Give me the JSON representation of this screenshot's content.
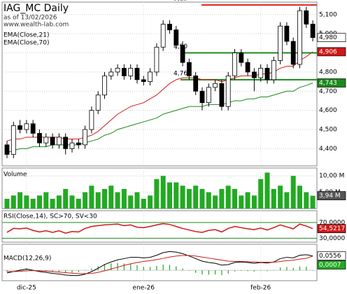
{
  "chart_data": [
    {
      "type": "candlestick",
      "title": "IAG_MC Daily",
      "subtitle": [
        "as of 13/02/2026",
        "www.wealth-lab.com"
      ],
      "categories": [
        null,
        null,
        null,
        "dic-25",
        null,
        null,
        null,
        null,
        null,
        null,
        null,
        null,
        null,
        null,
        null,
        null,
        null,
        null,
        null,
        null,
        null,
        "ene-26",
        null,
        null,
        null,
        null,
        null,
        null,
        null,
        null,
        null,
        null,
        null,
        null,
        null,
        null,
        null,
        null,
        null,
        "feb-26",
        null,
        null,
        null,
        null,
        null,
        null,
        null,
        null
      ],
      "open": [
        4.42,
        4.37,
        4.52,
        4.5,
        4.53,
        4.48,
        4.43,
        4.46,
        4.42,
        4.46,
        4.4,
        4.43,
        4.42,
        4.5,
        4.6,
        4.68,
        4.78,
        4.8,
        4.82,
        4.78,
        4.82,
        4.76,
        4.75,
        4.8,
        4.93,
        5.05,
        5.02,
        4.94,
        4.85,
        4.78,
        4.7,
        4.64,
        4.72,
        4.74,
        4.62,
        4.78,
        4.9,
        4.85,
        4.8,
        4.77,
        4.82,
        4.76,
        4.86,
        5.04,
        4.96,
        4.84,
        5.12,
        5.05
      ],
      "high": [
        4.44,
        4.54,
        4.55,
        4.55,
        4.55,
        4.5,
        4.48,
        4.48,
        4.48,
        4.48,
        4.45,
        4.45,
        4.52,
        4.62,
        4.7,
        4.8,
        4.82,
        4.84,
        4.84,
        4.84,
        4.84,
        4.78,
        4.82,
        4.95,
        5.07,
        5.07,
        5.04,
        4.96,
        4.87,
        4.8,
        4.72,
        4.74,
        4.76,
        4.76,
        4.8,
        4.92,
        4.92,
        4.87,
        4.82,
        4.84,
        4.84,
        4.88,
        5.06,
        5.06,
        4.98,
        5.14,
        5.14,
        5.07
      ],
      "low": [
        4.35,
        4.35,
        4.48,
        4.48,
        4.46,
        4.41,
        4.41,
        4.4,
        4.4,
        4.37,
        4.38,
        4.4,
        4.4,
        4.48,
        4.58,
        4.66,
        4.76,
        4.78,
        4.76,
        4.76,
        4.74,
        4.73,
        4.73,
        4.78,
        4.91,
        5.0,
        4.92,
        4.83,
        4.76,
        4.68,
        4.6,
        4.62,
        4.7,
        4.6,
        4.6,
        4.76,
        4.83,
        4.78,
        4.7,
        4.75,
        4.74,
        4.74,
        4.84,
        4.94,
        4.82,
        4.82,
        5.03,
        4.96
      ],
      "close": [
        4.37,
        4.52,
        4.5,
        4.53,
        4.48,
        4.43,
        4.46,
        4.42,
        4.46,
        4.4,
        4.43,
        4.42,
        4.5,
        4.6,
        4.68,
        4.78,
        4.8,
        4.82,
        4.78,
        4.82,
        4.76,
        4.75,
        4.8,
        4.93,
        5.05,
        5.02,
        4.94,
        4.85,
        4.78,
        4.7,
        4.64,
        4.72,
        4.74,
        4.62,
        4.78,
        4.9,
        4.85,
        4.8,
        4.77,
        4.82,
        4.76,
        4.86,
        5.04,
        4.96,
        4.84,
        5.12,
        5.05,
        4.98
      ],
      "value_label": "4,980",
      "up_color": "#ffffff",
      "down_color": "#000000",
      "series": [
        {
          "name": "EMA(Close,21)",
          "color": "#d01818",
          "value_label": "4,906",
          "values": [
            4.44,
            4.45,
            4.45,
            4.46,
            4.46,
            4.46,
            4.46,
            4.46,
            4.46,
            4.45,
            4.45,
            4.45,
            4.46,
            4.47,
            4.49,
            4.52,
            4.55,
            4.58,
            4.6,
            4.62,
            4.63,
            4.64,
            4.66,
            4.68,
            4.71,
            4.74,
            4.76,
            4.77,
            4.77,
            4.77,
            4.76,
            4.76,
            4.76,
            4.75,
            4.76,
            4.77,
            4.78,
            4.78,
            4.78,
            4.79,
            4.79,
            4.8,
            4.82,
            4.83,
            4.83,
            4.86,
            4.88,
            4.906
          ]
        },
        {
          "name": "EMA(Close,70)",
          "color": "#1a8a1a",
          "value_label": "4,743",
          "values": [
            4.38,
            4.39,
            4.4,
            4.4,
            4.41,
            4.41,
            4.41,
            4.42,
            4.42,
            4.42,
            4.42,
            4.42,
            4.43,
            4.44,
            4.45,
            4.47,
            4.48,
            4.5,
            4.51,
            4.52,
            4.53,
            4.54,
            4.55,
            4.56,
            4.58,
            4.59,
            4.6,
            4.61,
            4.62,
            4.62,
            4.62,
            4.63,
            4.63,
            4.63,
            4.64,
            4.65,
            4.65,
            4.66,
            4.66,
            4.67,
            4.67,
            4.68,
            4.69,
            4.7,
            4.7,
            4.72,
            4.73,
            4.743
          ]
        }
      ],
      "levels": [
        {
          "value": 5.15,
          "label": "5,15",
          "color": "#e02020"
        },
        {
          "value": 4.9,
          "label": "4,90",
          "color": "#1a8a1a"
        },
        {
          "value": 4.76,
          "label": "4,76",
          "color": "#1a8a1a"
        }
      ],
      "ylim": [
        4.31,
        5.165
      ],
      "yticks": [
        {
          "value": 4.4,
          "label": "4,400"
        },
        {
          "value": 4.5,
          "label": "4,500"
        },
        {
          "value": 4.6,
          "label": "4,600"
        },
        {
          "value": 4.7,
          "label": "4,700"
        },
        {
          "value": 4.8,
          "label": "4,800"
        },
        {
          "value": 4.9,
          "label": "4,900"
        },
        {
          "value": 5.0,
          "label": "5,000"
        },
        {
          "value": 5.1,
          "label": "5,100"
        }
      ],
      "grid": true
    },
    {
      "type": "bar",
      "title": "Volume",
      "color": "#22aa22",
      "value_label": "3,94 M",
      "values": [
        3,
        4,
        5,
        4,
        3,
        4,
        5,
        3,
        4,
        6,
        4,
        3,
        5,
        7,
        5,
        6,
        7,
        5,
        6,
        4,
        5,
        3,
        4,
        9,
        10,
        8,
        8,
        7,
        6,
        7,
        6,
        5,
        4,
        6,
        7,
        6,
        4,
        5,
        4,
        9,
        11,
        6,
        7,
        5,
        10,
        7,
        5,
        3.94
      ],
      "ylim": [
        0,
        12.4
      ],
      "yticks": [
        {
          "value": 5,
          "label": "5,00 M"
        },
        {
          "value": 10,
          "label": "10,00 M"
        }
      ]
    },
    {
      "type": "line",
      "title": "RSI(Close,14), SC>70, SV<30",
      "color": "#d01818",
      "value_label": "54,5217",
      "grid_color": "#1a8a1a",
      "values": [
        45,
        55,
        54,
        56,
        50,
        46,
        49,
        45,
        49,
        43,
        47,
        46,
        55,
        60,
        62,
        64,
        65,
        66,
        62,
        64,
        58,
        57,
        60,
        64,
        67,
        65,
        60,
        55,
        51,
        47,
        45,
        50,
        52,
        46,
        55,
        60,
        57,
        54,
        52,
        56,
        51,
        57,
        64,
        59,
        54,
        66,
        61,
        54.5217
      ],
      "ylim": [
        20,
        100
      ],
      "yticks": [
        {
          "value": 30,
          "label": "30,0000"
        },
        {
          "value": 70,
          "label": "70,0000"
        }
      ]
    },
    {
      "type": "macd",
      "title": "MACD(12,26,9)",
      "ylim": [
        -0.04,
        0.1
      ],
      "series": [
        {
          "color": "#000000",
          "value_label": "0,0556",
          "values": [
            -0.01,
            -0.005,
            0,
            0.005,
            0,
            -0.005,
            -0.008,
            -0.012,
            -0.014,
            -0.018,
            -0.02,
            -0.02,
            -0.015,
            -0.005,
            0.008,
            0.022,
            0.032,
            0.04,
            0.045,
            0.05,
            0.05,
            0.048,
            0.05,
            0.058,
            0.068,
            0.072,
            0.07,
            0.064,
            0.055,
            0.045,
            0.035,
            0.03,
            0.027,
            0.02,
            0.022,
            0.03,
            0.032,
            0.03,
            0.027,
            0.03,
            0.028,
            0.032,
            0.045,
            0.05,
            0.048,
            0.058,
            0.06,
            0.0556
          ]
        },
        {
          "color": "#d01818",
          "values": [
            -0.005,
            -0.005,
            -0.004,
            -0.002,
            -0.001,
            -0.002,
            -0.003,
            -0.005,
            -0.007,
            -0.009,
            -0.011,
            -0.013,
            -0.013,
            -0.012,
            -0.008,
            -0.002,
            0.005,
            0.012,
            0.019,
            0.025,
            0.03,
            0.034,
            0.037,
            0.041,
            0.046,
            0.051,
            0.055,
            0.057,
            0.057,
            0.055,
            0.051,
            0.047,
            0.043,
            0.039,
            0.035,
            0.034,
            0.034,
            0.033,
            0.032,
            0.031,
            0.031,
            0.031,
            0.034,
            0.037,
            0.039,
            0.043,
            0.046,
            0.0549
          ]
        }
      ],
      "histogram": {
        "color": "#22aa22",
        "value_label": "0,0007",
        "values": [
          -0.005,
          0,
          0.004,
          0.007,
          0.001,
          -0.003,
          -0.005,
          -0.007,
          -0.007,
          -0.009,
          -0.009,
          -0.007,
          -0.002,
          0.007,
          0.016,
          0.024,
          0.027,
          0.028,
          0.026,
          0.025,
          0.02,
          0.014,
          0.013,
          0.017,
          0.022,
          0.021,
          0.015,
          0.007,
          -0.002,
          -0.01,
          -0.016,
          -0.017,
          -0.016,
          -0.019,
          -0.013,
          -0.004,
          -0.002,
          -0.003,
          -0.005,
          -0.001,
          -0.003,
          0.001,
          0.011,
          0.013,
          0.009,
          0.015,
          0.014,
          0.0007
        ]
      }
    }
  ]
}
